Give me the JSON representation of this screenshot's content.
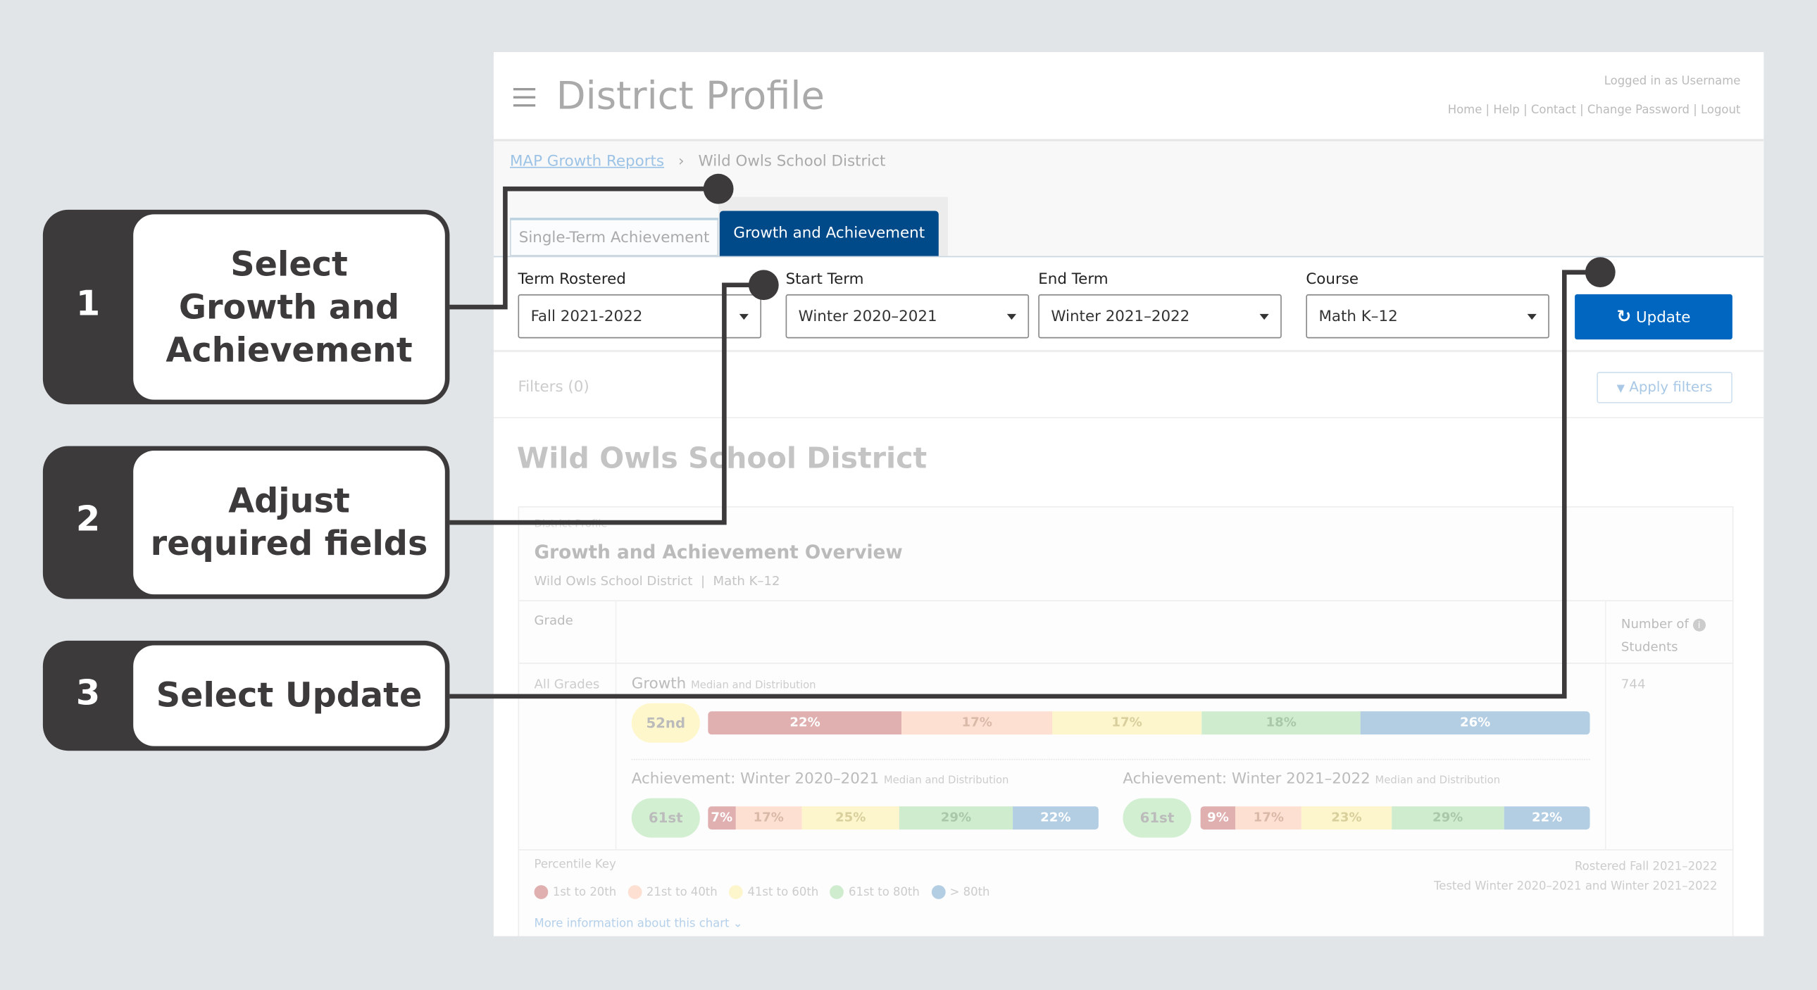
{
  "header": {
    "menu_icon": "hamburger-icon",
    "title": "District Profile",
    "logged_in": "Logged in as Username",
    "links": [
      "Home",
      "Help",
      "Contact",
      "Change Password",
      "Logout"
    ]
  },
  "breadcrumb": {
    "root": "MAP Growth Reports",
    "current": "Wild Owls School District"
  },
  "tabs": [
    {
      "label": "Single-Term Achievement",
      "active": false
    },
    {
      "label": "Growth and Achievement",
      "active": true
    }
  ],
  "form": {
    "term_rostered": {
      "label": "Term Rostered",
      "value": "Fall 2021-2022"
    },
    "start_term": {
      "label": "Start Term",
      "value": "Winter 2020–2021"
    },
    "end_term": {
      "label": "End Term",
      "value": "Winter 2021–2022"
    },
    "course": {
      "label": "Course",
      "value": "Math K–12"
    },
    "update_label": "Update"
  },
  "filters": {
    "label": "Filters (0)",
    "apply_label": "Apply filters"
  },
  "district_title": "Wild Owls School District",
  "card": {
    "eyebrow": "District Profile",
    "title": "Growth and Achievement Overview",
    "subtitle": "Wild Owls School District  |  Math K–12",
    "col_grade": "Grade",
    "col_students_1": "Number of",
    "col_students_2": "Students",
    "row_grade": "All Grades",
    "students": "744",
    "growth": {
      "label": "Growth",
      "sub": "Median and Distribution",
      "median": "52nd",
      "segments": [
        "22%",
        "17%",
        "17%",
        "18%",
        "26%"
      ]
    },
    "ach1": {
      "label": "Achievement: Winter 2020–2021",
      "sub": "Median and Distribution",
      "median": "61st",
      "segments": [
        "7%",
        "17%",
        "25%",
        "29%",
        "22%"
      ]
    },
    "ach2": {
      "label": "Achievement: Winter 2021–2022",
      "sub": "Median and Distribution",
      "median": "61st",
      "segments": [
        "9%",
        "17%",
        "23%",
        "29%",
        "22%"
      ]
    },
    "key_title": "Percentile Key",
    "key": [
      "1st to 20th",
      "21st to 40th",
      "41st to 60th",
      "61st to 80th",
      "> 80th"
    ],
    "rostered": "Rostered Fall 2021–2022",
    "tested": "Tested Winter 2020–2021 and Winter 2021–2022",
    "more_info": "More information about this chart"
  },
  "colors": {
    "accent": "#0066c0",
    "tab_active": "#004a8a",
    "callout": "#3d3a3b",
    "band1": "#e0b0b0",
    "band2": "#fde0d2",
    "band3": "#fdf5cc",
    "band4": "#cfeccf",
    "band5": "#b3cde3"
  },
  "callouts": [
    {
      "number": "1",
      "text": "Select Growth and Achievement"
    },
    {
      "number": "2",
      "text": "Adjust required fields"
    },
    {
      "number": "3",
      "text": "Select Update"
    }
  ]
}
